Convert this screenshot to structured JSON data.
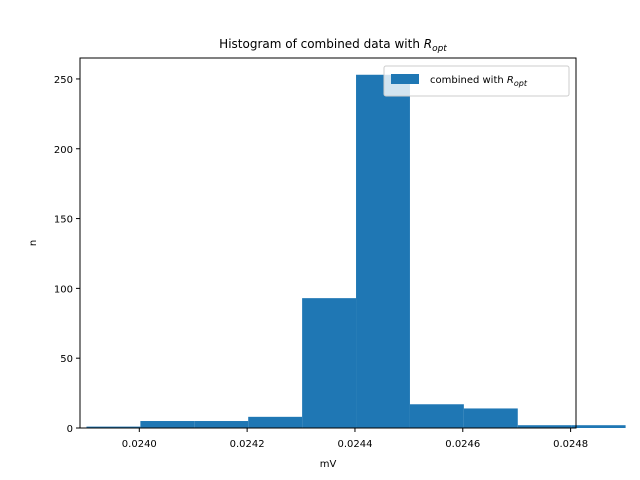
{
  "chart_data": {
    "type": "bar",
    "title": {
      "main": "Histogram of combined data with ",
      "sym": "R",
      "sub": "opt"
    },
    "xlabel": "mV",
    "ylabel": "n",
    "xlim": [
      0.02389,
      0.02481
    ],
    "ylim": [
      0,
      265
    ],
    "xticks": [
      0.024,
      0.0242,
      0.0244,
      0.0246,
      0.0248
    ],
    "xtick_labels": [
      "0.0240",
      "0.0242",
      "0.0244",
      "0.0246",
      "0.0248"
    ],
    "yticks": [
      0,
      50,
      100,
      150,
      200,
      250
    ],
    "ytick_labels": [
      "0",
      "50",
      "100",
      "150",
      "200",
      "250"
    ],
    "bins": [
      {
        "x0": 0.023902,
        "x1": 0.024002,
        "count": 1
      },
      {
        "x0": 0.024002,
        "x1": 0.024102,
        "count": 5
      },
      {
        "x0": 0.024102,
        "x1": 0.024202,
        "count": 5
      },
      {
        "x0": 0.024202,
        "x1": 0.024302,
        "count": 8
      },
      {
        "x0": 0.024302,
        "x1": 0.024402,
        "count": 93
      },
      {
        "x0": 0.024402,
        "x1": 0.024502,
        "count": 253
      },
      {
        "x0": 0.024502,
        "x1": 0.024602,
        "count": 17
      },
      {
        "x0": 0.024602,
        "x1": 0.024702,
        "count": 14
      },
      {
        "x0": 0.024702,
        "x1": 0.024802,
        "count": 2
      },
      {
        "x0": 0.024802,
        "x1": 0.024902,
        "count": 2
      }
    ],
    "series": [
      {
        "name": "combined with R_opt",
        "color": "#1f77b4"
      }
    ],
    "legend": {
      "text": "combined with ",
      "sym": "R",
      "sub": "opt",
      "placement": "top-right"
    },
    "grid": false
  }
}
